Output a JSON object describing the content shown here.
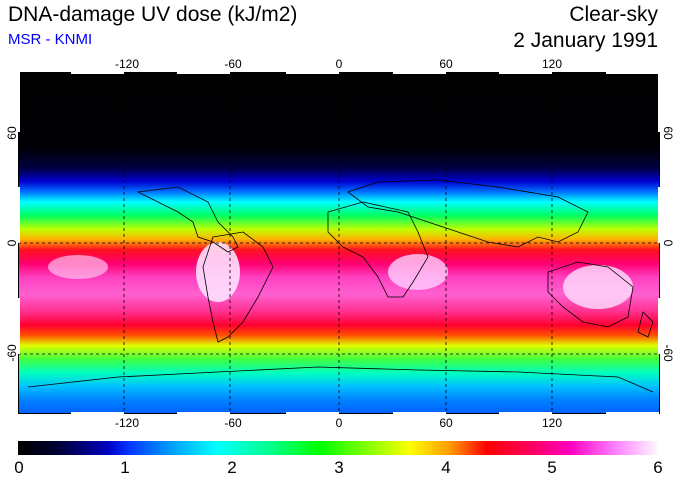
{
  "header": {
    "title": "DNA-damage UV dose (kJ/m2)",
    "source": "MSR - KNMI",
    "condition": "Clear-sky",
    "date": "2 January 1991"
  },
  "map": {
    "lon_ticks": [
      "-120",
      "-60",
      "0",
      "60",
      "120"
    ],
    "lat_ticks_left": [
      "60",
      "0",
      "-60"
    ],
    "lat_ticks_right": [
      "60",
      "0",
      "-60"
    ]
  },
  "colorbar": {
    "labels": [
      "0",
      "1",
      "2",
      "3",
      "4",
      "5",
      "6"
    ],
    "min": 0,
    "max": 6
  },
  "colors": {
    "subtitle": "#0000ff",
    "frame": "#000000"
  }
}
